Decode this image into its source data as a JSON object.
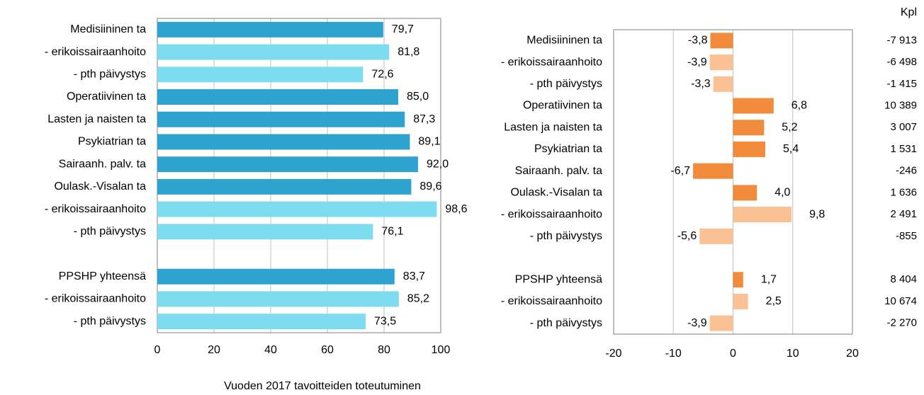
{
  "chart_data": [
    {
      "type": "bar",
      "orientation": "horizontal",
      "title": "Vuoden 2017 tavoitteiden toteutuminen",
      "categories": [
        "Medisiininen ta",
        "- erikoissairaanhoito",
        "- pth päivystys",
        "Operatiivinen ta",
        "Lasten ja naisten ta",
        "Psykiatrian ta",
        "Sairaanh. palv. ta",
        "Oulask.-Visalan ta",
        "- erikoissairaanhoito",
        "- pth päivystys",
        null,
        "PPSHP yhteensä",
        "- erikoissairaanhoito",
        "- pth päivystys"
      ],
      "values": [
        79.7,
        81.8,
        72.6,
        85.0,
        87.3,
        89.1,
        92.0,
        89.6,
        98.6,
        76.1,
        null,
        83.7,
        85.2,
        73.5
      ],
      "value_labels": [
        "79,7",
        "81,8",
        "72,6",
        "85,0",
        "87,3",
        "89,1",
        "92,0",
        "89,6",
        "98,6",
        "76,1",
        null,
        "83,7",
        "85,2",
        "73,5"
      ],
      "colors": [
        "#2ea3d2",
        "#7fdcf0",
        "#7fdcf0",
        "#2ea3d2",
        "#2ea3d2",
        "#2ea3d2",
        "#2ea3d2",
        "#2ea3d2",
        "#7fdcf0",
        "#7fdcf0",
        null,
        "#2ea3d2",
        "#7fdcf0",
        "#7fdcf0"
      ],
      "xlim": [
        0,
        100
      ],
      "xticks": [
        0,
        20,
        40,
        60,
        80,
        100
      ],
      "grid": true
    },
    {
      "type": "bar",
      "orientation": "horizontal",
      "categories": [
        "Medisiininen ta",
        "- erikoissairaanhoito",
        "- pth päivystys",
        "Operatiivinen ta",
        "Lasten ja naisten ta",
        "Psykiatrian ta",
        "Sairaanh. palv. ta",
        "Oulask.-Visalan ta",
        "- erikoissairaanhoito",
        "- pth päivystys",
        null,
        "PPSHP yhteensä",
        "- erikoissairaanhoito",
        "- pth päivystys"
      ],
      "values": [
        -3.8,
        -3.9,
        -3.3,
        6.8,
        5.2,
        5.4,
        -6.7,
        4.0,
        9.8,
        -5.6,
        null,
        1.7,
        2.5,
        -3.9
      ],
      "value_labels": [
        "-3,8",
        "-3,9",
        "-3,3",
        "6,8",
        "5,2",
        "5,4",
        "-6,7",
        "4,0",
        "9,8",
        "-5,6",
        null,
        "1,7",
        "2,5",
        "-3,9"
      ],
      "colors": [
        "#f28c3c",
        "#f9c194",
        "#f9c194",
        "#f28c3c",
        "#f28c3c",
        "#f28c3c",
        "#f28c3c",
        "#f28c3c",
        "#f9c194",
        "#f9c194",
        null,
        "#f28c3c",
        "#f9c194",
        "#f9c194"
      ],
      "xlim": [
        -20,
        20
      ],
      "xticks": [
        -20,
        -10,
        0,
        10,
        20
      ],
      "grid": true,
      "extra_column": {
        "title": "Kpl",
        "values": [
          -7913,
          -6498,
          -1415,
          10389,
          3007,
          1531,
          -246,
          1636,
          2491,
          -855,
          null,
          8404,
          10674,
          -2270
        ],
        "labels": [
          "-7 913",
          "-6 498",
          "-1 415",
          "10 389",
          "3 007",
          "1 531",
          "-246",
          "1 636",
          "2 491",
          "-855",
          null,
          "8 404",
          "10 674",
          "-2 270"
        ]
      }
    }
  ]
}
